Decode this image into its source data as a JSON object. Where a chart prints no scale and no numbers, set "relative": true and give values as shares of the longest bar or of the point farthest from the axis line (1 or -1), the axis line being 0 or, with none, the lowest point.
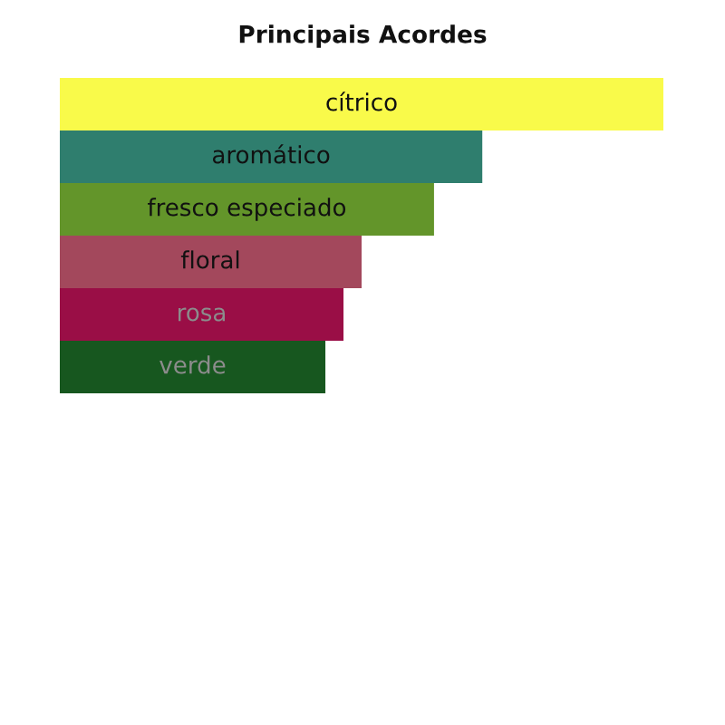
{
  "chart_data": {
    "type": "bar",
    "orientation": "horizontal",
    "relative": true,
    "title": "Principais Acordes",
    "categories": [
      "cítrico",
      "aromático",
      "fresco especiado",
      "floral",
      "rosa",
      "verde"
    ],
    "values": [
      1,
      0.7,
      0.62,
      0.5,
      0.47,
      0.44
    ],
    "colors": [
      "#f9fa4a",
      "#2f7e6e",
      "#63952a",
      "#a3485c",
      "#9a0e46",
      "#17571f"
    ]
  }
}
